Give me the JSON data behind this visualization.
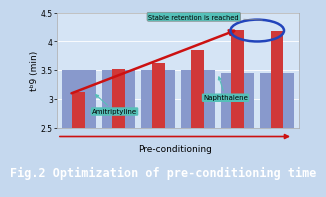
{
  "title": "Fig.2 Optimization of pre-conditioning time",
  "ylabel": "tᵇ9 (min)",
  "xlabel": "Pre-conditioning",
  "ylim": [
    2.5,
    4.5
  ],
  "yticks": [
    2.5,
    3.0,
    3.5,
    4.0,
    4.5
  ],
  "bar_groups": [
    {
      "amitriptyline": 3.12,
      "naphthalene": 3.5
    },
    {
      "amitriptyline": 3.52,
      "naphthalene": 3.5
    },
    {
      "amitriptyline": 3.62,
      "naphthalene": 3.5
    },
    {
      "amitriptyline": 3.85,
      "naphthalene": 3.5
    },
    {
      "amitriptyline": 4.2,
      "naphthalene": 3.45
    },
    {
      "amitriptyline": 4.18,
      "naphthalene": 3.45
    }
  ],
  "bar_color_red": "#d03838",
  "bar_color_blue": "#8899cc",
  "bg_color": "#c5d8ee",
  "plot_bg_color": "#d5e4f5",
  "arrow_color": "#cc1111",
  "label_box_color": "#55c0b8",
  "ellipse_color": "#2244bb",
  "stable_text": "Stable retention is reached",
  "amitriptyline_label": "Amitriptyline",
  "naphthalene_label": "Naphthalene",
  "footer_bg": "#1a3f8f",
  "footer_text_color": "#ffffff",
  "footer_fontsize": 8.5
}
